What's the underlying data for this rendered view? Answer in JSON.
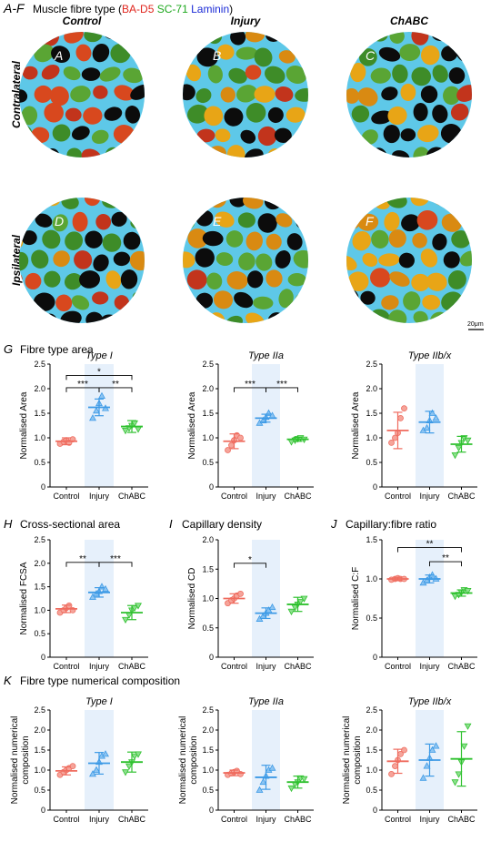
{
  "header": {
    "panel_id": "A-F",
    "title_prefix": "Muscle fibre type (",
    "stain1": "BA-D5",
    "stain2": "SC-71",
    "stain3": "Laminin",
    "title_suffix": ")",
    "colors": {
      "stain1": "#e0261e",
      "stain2": "#1ea81e",
      "stain3": "#1a2ad6"
    }
  },
  "micrographs": {
    "columns": [
      "Control",
      "Injury",
      "ChABC"
    ],
    "rows": [
      "Contralateral",
      "Ipsilateral"
    ],
    "panels": [
      {
        "label": "A",
        "seed": 3,
        "red": 0.35,
        "orange": 0.0,
        "green": 0.35
      },
      {
        "label": "B",
        "seed": 7,
        "red": 0.05,
        "orange": 0.3,
        "green": 0.35
      },
      {
        "label": "C",
        "seed": 11,
        "red": 0.05,
        "orange": 0.35,
        "green": 0.3
      },
      {
        "label": "D",
        "seed": 17,
        "red": 0.25,
        "orange": 0.1,
        "green": 0.3
      },
      {
        "label": "E",
        "seed": 23,
        "red": 0.05,
        "orange": 0.3,
        "green": 0.35
      },
      {
        "label": "F",
        "seed": 29,
        "red": 0.05,
        "orange": 0.4,
        "green": 0.35
      }
    ],
    "scale_bar": "20μm"
  },
  "sections": {
    "G": {
      "letter": "G",
      "title": "Fibre type area"
    },
    "H": {
      "letter": "H",
      "title": "Cross-sectional area"
    },
    "I": {
      "letter": "I",
      "title": "Capillary density"
    },
    "J": {
      "letter": "J",
      "title": "Capillary:fibre ratio"
    },
    "K": {
      "letter": "K",
      "title": "Fibre type numerical composition"
    }
  },
  "chart_data": [
    {
      "id": "G1",
      "type": "scatter",
      "subtitle": "Type I",
      "ylabel": "Normalised Area",
      "categories": [
        "Control",
        "Injury",
        "ChABC"
      ],
      "ylim": [
        0,
        2.5
      ],
      "ticks": [
        0,
        0.5,
        1.0,
        1.5,
        2.0,
        2.5
      ],
      "mean": [
        0.93,
        1.62,
        1.23
      ],
      "error": [
        0.07,
        0.17,
        0.12
      ],
      "points": [
        [
          0.88,
          0.92,
          0.95,
          0.9,
          0.97
        ],
        [
          1.4,
          1.55,
          1.7,
          1.85,
          1.6
        ],
        [
          1.15,
          1.2,
          1.25,
          1.3,
          1.18
        ]
      ],
      "significance": [
        {
          "from": 0,
          "to": 1,
          "label": "***",
          "y": 2.02
        },
        {
          "from": 1,
          "to": 2,
          "label": "**",
          "y": 2.02
        },
        {
          "from": 0,
          "to": 2,
          "label": "*",
          "y": 2.27
        }
      ]
    },
    {
      "id": "G2",
      "type": "scatter",
      "subtitle": "Type IIa",
      "ylabel": "Normalised Area",
      "categories": [
        "Control",
        "Injury",
        "ChABC"
      ],
      "ylim": [
        0,
        2.5
      ],
      "ticks": [
        0,
        0.5,
        1.0,
        1.5,
        2.0,
        2.5
      ],
      "mean": [
        0.93,
        1.4,
        0.97
      ],
      "error": [
        0.15,
        0.08,
        0.04
      ],
      "points": [
        [
          0.75,
          0.85,
          0.95,
          1.05,
          1.0
        ],
        [
          1.3,
          1.35,
          1.42,
          1.5,
          1.45
        ],
        [
          0.92,
          0.95,
          0.98,
          1.0,
          0.97
        ]
      ],
      "significance": [
        {
          "from": 0,
          "to": 1,
          "label": "***",
          "y": 2.02
        },
        {
          "from": 1,
          "to": 2,
          "label": "***",
          "y": 2.02
        }
      ]
    },
    {
      "id": "G3",
      "type": "scatter",
      "subtitle": "Type IIb/x",
      "ylabel": "Normalised Area",
      "categories": [
        "Control",
        "Injury",
        "ChABC"
      ],
      "ylim": [
        0,
        2.5
      ],
      "ticks": [
        0,
        0.5,
        1.0,
        1.5,
        2.0,
        2.5
      ],
      "mean": [
        1.15,
        1.32,
        0.87
      ],
      "error": [
        0.37,
        0.22,
        0.16
      ],
      "points": [
        [
          0.9,
          1.0,
          1.1,
          1.4,
          1.6
        ],
        [
          1.15,
          1.2,
          1.35,
          1.5,
          1.4
        ],
        [
          0.65,
          0.8,
          0.9,
          1.0,
          0.95
        ]
      ],
      "significance": []
    },
    {
      "id": "H",
      "type": "scatter",
      "subtitle": "",
      "ylabel": "Normalised FCSA",
      "categories": [
        "Control",
        "Injury",
        "ChABC"
      ],
      "ylim": [
        0,
        2.5
      ],
      "ticks": [
        0,
        0.5,
        1.0,
        1.5,
        2.0,
        2.5
      ],
      "mean": [
        1.03,
        1.38,
        0.95
      ],
      "error": [
        0.08,
        0.1,
        0.15
      ],
      "points": [
        [
          0.95,
          1.0,
          1.05,
          1.1,
          1.0
        ],
        [
          1.28,
          1.35,
          1.4,
          1.5,
          1.45
        ],
        [
          0.8,
          0.9,
          1.0,
          1.05,
          1.1
        ]
      ],
      "significance": [
        {
          "from": 0,
          "to": 1,
          "label": "**",
          "y": 2.02
        },
        {
          "from": 1,
          "to": 2,
          "label": "***",
          "y": 2.02
        }
      ]
    },
    {
      "id": "I",
      "type": "scatter",
      "subtitle": "",
      "ylabel": "Normalised CD",
      "categories": [
        "Control",
        "Injury",
        "ChABC"
      ],
      "ylim": [
        0,
        2.0
      ],
      "ticks": [
        0,
        0.5,
        1.0,
        1.5,
        2.0
      ],
      "mean": [
        1.0,
        0.75,
        0.9
      ],
      "error": [
        0.08,
        0.09,
        0.12
      ],
      "points": [
        [
          0.92,
          0.97,
          1.0,
          1.05,
          1.08
        ],
        [
          0.65,
          0.7,
          0.75,
          0.8,
          0.85
        ],
        [
          0.78,
          0.85,
          0.9,
          0.95,
          1.0
        ]
      ],
      "significance": [
        {
          "from": 0,
          "to": 1,
          "label": "*",
          "y": 1.6
        }
      ]
    },
    {
      "id": "J",
      "type": "scatter",
      "subtitle": "",
      "ylabel": "Normalised C:F",
      "categories": [
        "Control",
        "Injury",
        "ChABC"
      ],
      "ylim": [
        0,
        1.5
      ],
      "ticks": [
        0,
        0.5,
        1.0,
        1.5
      ],
      "mean": [
        1.0,
        1.0,
        0.82
      ],
      "error": [
        0.02,
        0.05,
        0.04
      ],
      "points": [
        [
          0.99,
          1.0,
          1.01,
          1.0,
          1.0
        ],
        [
          0.95,
          0.98,
          1.02,
          1.05,
          1.0
        ],
        [
          0.78,
          0.8,
          0.83,
          0.86,
          0.85
        ]
      ],
      "significance": [
        {
          "from": 1,
          "to": 2,
          "label": "**",
          "y": 1.22
        },
        {
          "from": 0,
          "to": 2,
          "label": "**",
          "y": 1.4
        }
      ]
    },
    {
      "id": "K1",
      "type": "scatter",
      "subtitle": "Type I",
      "ylabel": "Normalised numerical composition",
      "categories": [
        "Control",
        "Injury",
        "ChABC"
      ],
      "ylim": [
        0,
        2.5
      ],
      "ticks": [
        0,
        0.5,
        1.0,
        1.5,
        2.0,
        2.5
      ],
      "mean": [
        0.98,
        1.17,
        1.2
      ],
      "error": [
        0.1,
        0.27,
        0.25
      ],
      "points": [
        [
          0.88,
          0.95,
          1.0,
          1.05,
          1.1
        ],
        [
          0.9,
          1.0,
          1.2,
          1.35,
          1.4
        ],
        [
          0.95,
          1.1,
          1.2,
          1.35,
          1.4
        ]
      ],
      "significance": []
    },
    {
      "id": "K2",
      "type": "scatter",
      "subtitle": "Type IIa",
      "ylabel": "Normalised numerical composition",
      "categories": [
        "Control",
        "Injury",
        "ChABC"
      ],
      "ylim": [
        0,
        2.5
      ],
      "ticks": [
        0,
        0.5,
        1.0,
        1.5,
        2.0,
        2.5
      ],
      "mean": [
        0.93,
        0.82,
        0.7
      ],
      "error": [
        0.07,
        0.3,
        0.15
      ],
      "points": [
        [
          0.88,
          0.92,
          0.95,
          0.98,
          0.9
        ],
        [
          0.5,
          0.7,
          0.85,
          1.0,
          1.05
        ],
        [
          0.55,
          0.65,
          0.7,
          0.8,
          0.78
        ]
      ],
      "significance": []
    },
    {
      "id": "K3",
      "type": "scatter",
      "subtitle": "Type IIb/x",
      "ylabel": "Normalised numerical composition",
      "categories": [
        "Control",
        "Injury",
        "ChABC"
      ],
      "ylim": [
        0,
        2.5
      ],
      "ticks": [
        0,
        0.5,
        1.0,
        1.5,
        2.0,
        2.5
      ],
      "mean": [
        1.22,
        1.25,
        1.28
      ],
      "error": [
        0.3,
        0.4,
        0.68
      ],
      "points": [
        [
          0.9,
          1.1,
          1.25,
          1.4,
          1.5
        ],
        [
          0.8,
          1.1,
          1.3,
          1.5,
          1.6
        ],
        [
          0.7,
          0.9,
          1.2,
          1.6,
          2.1
        ]
      ],
      "significance": []
    }
  ],
  "colors": {
    "control": "#ef6b5e",
    "injury": "#3d9ae6",
    "chabc": "#2fc12f",
    "shade": "#e6f0fb"
  }
}
